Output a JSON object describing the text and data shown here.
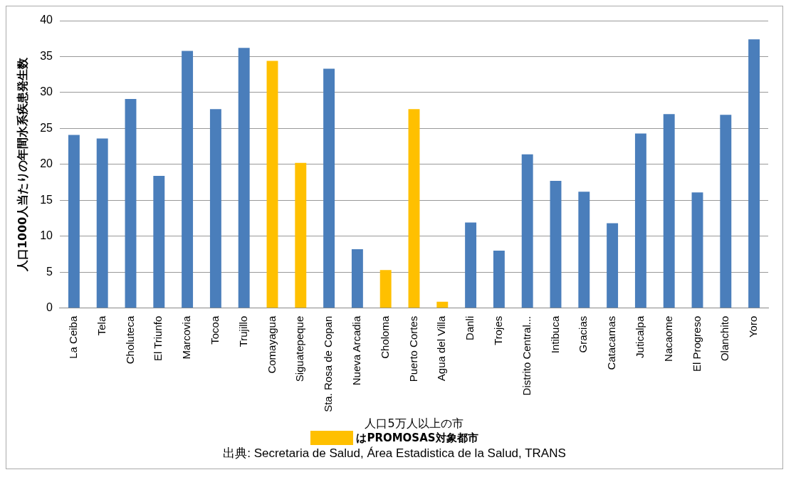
{
  "chart_data": {
    "type": "bar",
    "ylabel": "人口1000人当たりの年間水系疾患発生数",
    "xlabel": "人口5万人以上の市",
    "categories": [
      "La Ceiba",
      "Tela",
      "Choluteca",
      "El Triunfo",
      "Marcovia",
      "Tocoa",
      "Trujillo",
      "Comayagua",
      "Siguatepeque",
      "Sta. Rosa de Copan",
      "Nueva Arcadia",
      "Choloma",
      "Puerto Cortes",
      "Agua del Villa",
      "Danli",
      "Trojes",
      "Distrito Central...",
      "Intibuca",
      "Gracias",
      "Catacamas",
      "Juticalpa",
      "Nacaome",
      "El Progreso",
      "Olanchito",
      "Yoro"
    ],
    "values": [
      24.1,
      23.6,
      29.1,
      18.4,
      35.8,
      27.7,
      36.2,
      34.4,
      20.2,
      33.3,
      8.2,
      5.3,
      27.7,
      0.9,
      11.9,
      8.0,
      21.4,
      17.7,
      16.2,
      11.8,
      24.3,
      27.0,
      16.1,
      26.9,
      37.4
    ],
    "colors": [
      "#4a7ebb",
      "#4a7ebb",
      "#4a7ebb",
      "#4a7ebb",
      "#4a7ebb",
      "#4a7ebb",
      "#4a7ebb",
      "#ffc000",
      "#ffc000",
      "#4a7ebb",
      "#4a7ebb",
      "#ffc000",
      "#ffc000",
      "#ffc000",
      "#4a7ebb",
      "#4a7ebb",
      "#4a7ebb",
      "#4a7ebb",
      "#4a7ebb",
      "#4a7ebb",
      "#4a7ebb",
      "#4a7ebb",
      "#4a7ebb",
      "#4a7ebb",
      "#4a7ebb"
    ],
    "ylim": [
      0,
      40
    ],
    "yticks": [
      0,
      5,
      10,
      15,
      20,
      25,
      30,
      35,
      40
    ],
    "grid": "y",
    "legend": false,
    "annotations": [
      "はPROMOSAS対象都市",
      "出典: Secretaria de Salud, Área Estadistica de la Salud, TRANS"
    ]
  }
}
